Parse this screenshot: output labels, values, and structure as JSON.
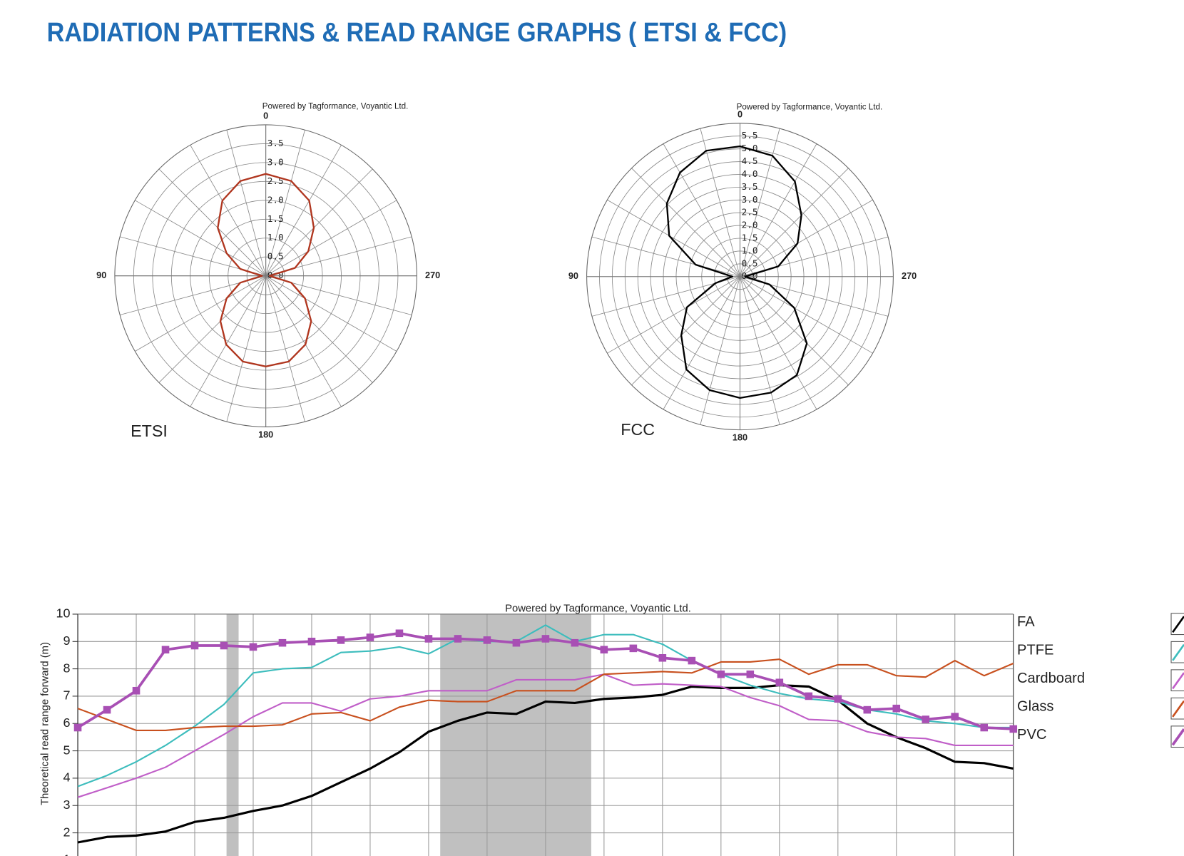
{
  "page_title": "RADIATION PATTERNS & READ RANGE GRAPHS ( ETSI & FCC)",
  "chart_data": [
    {
      "type": "polar",
      "title": "Powered by Tagformance, Voyantic Ltd.",
      "label": "ETSI",
      "x": [
        0,
        15,
        30,
        45,
        60,
        75,
        90,
        105,
        120,
        135,
        150,
        165,
        180,
        195,
        210,
        225,
        240,
        255,
        270,
        285,
        300,
        315,
        330,
        345
      ],
      "xlim": [
        0,
        360
      ],
      "xticks": [
        0,
        90,
        180,
        270
      ],
      "ylim": [
        0,
        4
      ],
      "yticks": [
        {
          "value": 0,
          "label": "0.0"
        },
        0.5,
        {
          "value": 1,
          "label": "1.0"
        },
        1.5,
        {
          "value": 2,
          "label": "2.0"
        },
        2.5,
        {
          "value": 3,
          "label": "3.0"
        },
        3.5
      ],
      "series": [
        {
          "color": "#b0361f",
          "values": [
            2.7,
            2.6,
            2.3,
            1.8,
            1.2,
            0.7,
            0.1,
            0.7,
            1.2,
            1.7,
            2.1,
            2.35,
            2.4,
            2.35,
            2.1,
            1.7,
            1.2,
            0.7,
            0.1,
            0.8,
            1.3,
            1.8,
            2.3,
            2.6
          ]
        }
      ]
    },
    {
      "type": "polar",
      "title": "Powered by Tagformance, Voyantic Ltd.",
      "label": "FCC",
      "x": [
        0,
        15,
        30,
        45,
        60,
        75,
        90,
        105,
        120,
        135,
        150,
        165,
        180,
        195,
        210,
        225,
        240,
        255,
        270,
        285,
        300,
        315,
        330,
        345
      ],
      "xlim": [
        0,
        360
      ],
      "xticks": [
        0,
        90,
        180,
        270
      ],
      "ylim": [
        0,
        6
      ],
      "yticks": [
        {
          "value": 0,
          "label": "0.0"
        },
        0.5,
        {
          "value": 1,
          "label": "1.0"
        },
        1.5,
        {
          "value": 2,
          "label": "2.0"
        },
        2.5,
        {
          "value": 3,
          "label": "3.0"
        },
        3.5,
        {
          "value": 4,
          "label": "4.0"
        },
        4.5,
        {
          "value": 5,
          "label": "5.0"
        },
        5.5
      ],
      "series": [
        {
          "color": "#000000",
          "values": [
            5.1,
            5.1,
            4.7,
            4.05,
            3.2,
            1.8,
            0.3,
            1.0,
            2.4,
            3.25,
            4.2,
            4.6,
            4.75,
            4.7,
            4.45,
            3.7,
            2.45,
            1.2,
            0.2,
            1.55,
            2.6,
            3.4,
            4.3,
            4.9
          ]
        }
      ]
    },
    {
      "type": "line",
      "title": "Powered by Tagformance, Voyantic Ltd.",
      "y_label": "Theoretical read range forward (m)",
      "categories": [
        null,
        null,
        null,
        null,
        null,
        null,
        null,
        null,
        null,
        null,
        null,
        null,
        null,
        null,
        null,
        null,
        null,
        null,
        null,
        null,
        null,
        null,
        null,
        null,
        null,
        null,
        null,
        null,
        null,
        null,
        null,
        null,
        null
      ],
      "ylim": [
        0,
        10
      ],
      "yticks": [
        1,
        2,
        3,
        4,
        5,
        6,
        7,
        8,
        9,
        10
      ],
      "grid": true,
      "series": [
        {
          "name": "FA",
          "color": "#000000",
          "values": [
            1.65,
            1.85,
            1.9,
            2.05,
            2.4,
            2.55,
            2.8,
            3.0,
            3.35,
            3.85,
            4.35,
            4.95,
            5.7,
            6.1,
            6.4,
            6.35,
            6.8,
            6.75,
            6.9,
            6.95,
            7.05,
            7.35,
            7.3,
            7.3,
            7.4,
            7.35,
            6.85,
            6.0,
            5.5,
            5.1,
            4.6,
            4.55,
            4.35
          ]
        },
        {
          "name": "PTFE",
          "color": "#3dbdbd",
          "values": [
            3.7,
            4.1,
            4.6,
            5.2,
            5.9,
            6.7,
            7.85,
            8.0,
            8.05,
            8.6,
            8.65,
            8.8,
            8.55,
            9.1,
            9.0,
            9.0,
            9.6,
            9.0,
            9.25,
            9.25,
            8.9,
            8.3,
            7.8,
            7.4,
            7.1,
            6.9,
            6.8,
            6.5,
            6.35,
            6.1,
            6.0,
            5.85,
            5.85
          ]
        },
        {
          "name": "Cardboard",
          "color": "#c05ec8",
          "values": [
            3.3,
            3.65,
            4.0,
            4.4,
            5.0,
            5.6,
            6.25,
            6.75,
            6.75,
            6.45,
            6.9,
            7.0,
            7.2,
            7.2,
            7.2,
            7.6,
            7.6,
            7.6,
            7.8,
            7.4,
            7.45,
            7.4,
            7.35,
            6.95,
            6.65,
            6.15,
            6.1,
            5.7,
            5.5,
            5.45,
            5.2,
            5.2,
            5.2
          ]
        },
        {
          "name": "Glass",
          "color": "#c8501e",
          "values": [
            6.55,
            6.15,
            5.75,
            5.75,
            5.85,
            5.9,
            5.9,
            5.95,
            6.35,
            6.4,
            6.1,
            6.6,
            6.85,
            6.8,
            6.8,
            7.2,
            7.2,
            7.2,
            7.8,
            7.85,
            7.9,
            7.85,
            8.25,
            8.25,
            8.35,
            7.8,
            8.15,
            8.15,
            7.75,
            7.7,
            8.3,
            7.75,
            8.2
          ]
        },
        {
          "name": "PVC",
          "color": "#a84fb4",
          "marker": "square",
          "values": [
            5.85,
            6.5,
            7.2,
            8.7,
            8.85,
            8.85,
            8.8,
            8.95,
            9.0,
            9.05,
            9.15,
            9.3,
            9.1,
            9.1,
            9.05,
            8.95,
            9.1,
            8.95,
            8.7,
            8.75,
            8.4,
            8.3,
            7.8,
            7.8,
            7.5,
            7.0,
            6.9,
            6.5,
            6.55,
            6.15,
            6.25,
            5.85,
            5.8
          ]
        }
      ]
    }
  ]
}
